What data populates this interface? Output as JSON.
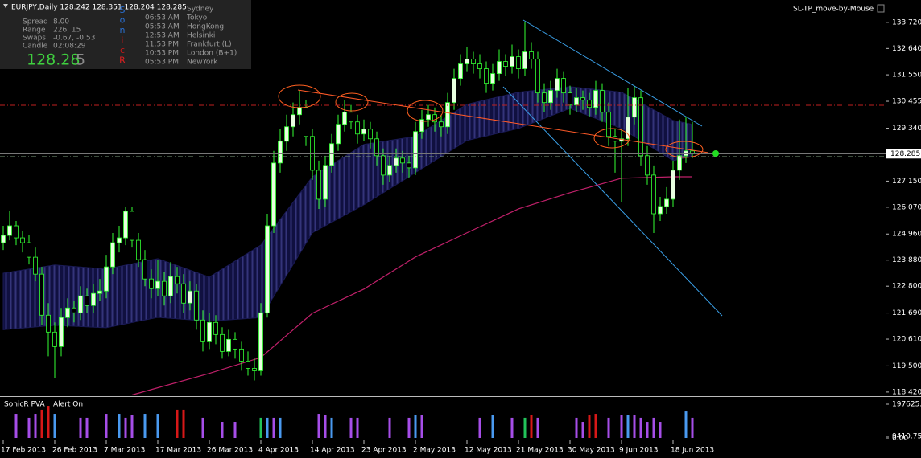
{
  "header": {
    "symbol": "EURJPY,Daily  128.242 128.351 128.204 128.285",
    "expert": "SL-TP_move-by-Mouse"
  },
  "info_panel": {
    "rows": [
      [
        "Spread",
        "8.00"
      ],
      [
        "Range",
        "226, 15"
      ],
      [
        "Swaps",
        "-0.67, -0.53"
      ],
      [
        "Candle",
        "02:08:29"
      ]
    ],
    "price_main": "128.28",
    "price_last": "5",
    "sonic": [
      {
        "letter": "S",
        "color": "#2a6fd0"
      },
      {
        "letter": "o",
        "color": "#2a6fd0"
      },
      {
        "letter": "n",
        "color": "#2a6fd0"
      },
      {
        "letter": "i",
        "color": "#a01818"
      },
      {
        "letter": "c",
        "color": "#c81818"
      },
      {
        "letter": "R",
        "color": "#e02020"
      }
    ],
    "sessions": [
      {
        "city": "Sydney"
      },
      {
        "time": "06:53 AM",
        "city": "Tokyo"
      },
      {
        "time": "05:53 AM",
        "city": "HongKong"
      },
      {
        "time": "12:53 AM",
        "city": "Helsinki"
      },
      {
        "time": "11:53 PM",
        "city": "Frankfurt  (L)"
      },
      {
        "time": "10:53 PM",
        "city": "London  (B+1)"
      },
      {
        "time": "05:53 PM",
        "city": "NewYork"
      }
    ]
  },
  "chart_data": [
    {
      "type": "candlestick",
      "categories": [
        "17 Feb 2013",
        null,
        null,
        null,
        null,
        null,
        null,
        null,
        "26 Feb 2013",
        null,
        null,
        null,
        null,
        null,
        null,
        null,
        "7 Mar 2013",
        null,
        null,
        null,
        null,
        null,
        null,
        null,
        "17 Mar 2013",
        null,
        null,
        null,
        null,
        null,
        null,
        null,
        "26 Mar 2013",
        null,
        null,
        null,
        null,
        null,
        null,
        null,
        "4 Apr 2013",
        null,
        null,
        null,
        null,
        null,
        null,
        null,
        "14 Apr 2013",
        null,
        null,
        null,
        null,
        null,
        null,
        null,
        "23 Apr 2013",
        null,
        null,
        null,
        null,
        null,
        null,
        null,
        "2 May 2013",
        null,
        null,
        null,
        null,
        null,
        null,
        null,
        "12 May 2013",
        null,
        null,
        null,
        null,
        null,
        null,
        null,
        "21 May 2013",
        null,
        null,
        null,
        null,
        null,
        null,
        null,
        "30 May 2013",
        null,
        null,
        null,
        null,
        null,
        null,
        null,
        "9 Jun 2013",
        null,
        null,
        null,
        null,
        null,
        null,
        null,
        "18 Jun 2013",
        null,
        null,
        null
      ],
      "ohlc": [
        [
          124.6,
          125.3,
          124.3,
          124.9
        ],
        [
          124.9,
          125.9,
          124.7,
          125.3
        ],
        [
          125.3,
          125.5,
          124.5,
          124.8
        ],
        [
          124.8,
          125.1,
          124.2,
          124.6
        ],
        [
          124.6,
          124.9,
          123.7,
          124.0
        ],
        [
          124.0,
          124.4,
          123.0,
          123.3
        ],
        [
          123.3,
          123.6,
          121.2,
          121.6
        ],
        [
          121.6,
          122.1,
          119.9,
          120.9
        ],
        [
          120.9,
          121.3,
          119.0,
          120.3
        ],
        [
          120.3,
          121.9,
          119.9,
          121.5
        ],
        [
          121.5,
          122.3,
          121.1,
          121.9
        ],
        [
          121.9,
          122.2,
          121.3,
          121.7
        ],
        [
          121.7,
          122.8,
          121.4,
          122.4
        ],
        [
          122.4,
          122.7,
          121.7,
          122.0
        ],
        [
          122.0,
          122.9,
          121.7,
          122.5
        ],
        [
          122.5,
          123.1,
          122.2,
          122.6
        ],
        [
          122.6,
          124.1,
          122.3,
          123.6
        ],
        [
          123.6,
          125.0,
          123.3,
          124.6
        ],
        [
          124.6,
          125.3,
          124.2,
          124.8
        ],
        [
          124.8,
          126.1,
          124.5,
          125.9
        ],
        [
          125.9,
          126.1,
          124.4,
          124.7
        ],
        [
          124.7,
          125.0,
          123.6,
          123.9
        ],
        [
          123.9,
          124.3,
          122.8,
          123.1
        ],
        [
          123.1,
          123.5,
          122.3,
          122.7
        ],
        [
          122.7,
          123.9,
          122.4,
          123.0
        ],
        [
          123.0,
          123.4,
          122.0,
          122.4
        ],
        [
          122.4,
          123.8,
          122.1,
          123.2
        ],
        [
          123.2,
          123.6,
          122.5,
          122.9
        ],
        [
          122.9,
          123.3,
          121.7,
          122.1
        ],
        [
          122.1,
          123.0,
          121.8,
          122.6
        ],
        [
          122.6,
          122.9,
          121.0,
          121.4
        ],
        [
          121.4,
          121.8,
          120.1,
          120.5
        ],
        [
          120.5,
          121.7,
          120.2,
          121.3
        ],
        [
          121.3,
          121.6,
          120.4,
          120.8
        ],
        [
          120.8,
          121.1,
          119.8,
          120.1
        ],
        [
          120.1,
          121.0,
          119.9,
          120.6
        ],
        [
          120.6,
          120.9,
          119.8,
          120.2
        ],
        [
          120.2,
          120.5,
          119.3,
          119.7
        ],
        [
          119.7,
          120.1,
          119.1,
          119.4
        ],
        [
          119.4,
          119.8,
          118.9,
          119.3
        ],
        [
          119.3,
          122.1,
          119.1,
          121.7
        ],
        [
          121.7,
          125.8,
          121.5,
          125.3
        ],
        [
          125.3,
          128.4,
          125.0,
          127.9
        ],
        [
          127.9,
          129.3,
          127.5,
          128.8
        ],
        [
          128.8,
          129.9,
          128.4,
          129.4
        ],
        [
          129.4,
          130.4,
          129.0,
          129.9
        ],
        [
          129.9,
          130.9,
          129.5,
          130.2
        ],
        [
          130.2,
          130.5,
          128.6,
          129.0
        ],
        [
          129.0,
          129.3,
          127.2,
          127.6
        ],
        [
          127.6,
          128.0,
          126.0,
          126.4
        ],
        [
          126.4,
          128.2,
          126.1,
          127.8
        ],
        [
          127.8,
          129.1,
          127.5,
          128.7
        ],
        [
          128.7,
          129.9,
          128.4,
          129.5
        ],
        [
          129.5,
          130.5,
          129.2,
          130.0
        ],
        [
          130.0,
          130.3,
          129.3,
          129.6
        ],
        [
          129.6,
          129.9,
          128.7,
          129.1
        ],
        [
          129.1,
          129.7,
          128.8,
          129.3
        ],
        [
          129.3,
          129.6,
          128.5,
          128.9
        ],
        [
          128.9,
          129.2,
          127.8,
          128.2
        ],
        [
          128.2,
          128.5,
          127.0,
          127.4
        ],
        [
          127.4,
          128.2,
          127.1,
          127.8
        ],
        [
          127.8,
          128.5,
          127.5,
          128.1
        ],
        [
          128.1,
          128.4,
          127.5,
          127.9
        ],
        [
          127.9,
          128.2,
          127.3,
          127.7
        ],
        [
          127.7,
          129.6,
          127.4,
          129.2
        ],
        [
          129.2,
          130.1,
          128.9,
          129.7
        ],
        [
          129.7,
          130.3,
          129.4,
          129.9
        ],
        [
          129.9,
          130.2,
          129.2,
          129.6
        ],
        [
          129.6,
          129.9,
          129.0,
          129.4
        ],
        [
          129.4,
          130.8,
          129.1,
          130.4
        ],
        [
          130.4,
          131.8,
          130.1,
          131.4
        ],
        [
          131.4,
          132.4,
          131.1,
          132.0
        ],
        [
          132.0,
          132.7,
          131.7,
          132.2
        ],
        [
          132.2,
          132.5,
          131.6,
          132.0
        ],
        [
          132.0,
          132.4,
          131.4,
          131.8
        ],
        [
          131.8,
          132.1,
          130.8,
          131.2
        ],
        [
          131.2,
          132.0,
          130.9,
          131.6
        ],
        [
          131.6,
          132.6,
          131.3,
          132.1
        ],
        [
          132.1,
          132.4,
          131.5,
          131.9
        ],
        [
          131.9,
          132.8,
          131.6,
          132.3
        ],
        [
          132.3,
          132.6,
          131.4,
          131.8
        ],
        [
          131.8,
          133.75,
          131.5,
          132.5
        ],
        [
          132.5,
          132.9,
          131.8,
          132.2
        ],
        [
          132.2,
          132.5,
          130.4,
          130.8
        ],
        [
          130.8,
          131.2,
          130.0,
          130.4
        ],
        [
          130.4,
          131.3,
          130.1,
          130.9
        ],
        [
          130.9,
          131.8,
          130.6,
          131.4
        ],
        [
          131.4,
          131.7,
          130.4,
          130.8
        ],
        [
          130.8,
          131.1,
          129.9,
          130.3
        ],
        [
          130.3,
          131.0,
          130.0,
          130.6
        ],
        [
          130.6,
          130.9,
          130.1,
          130.5
        ],
        [
          130.5,
          130.8,
          129.8,
          130.2
        ],
        [
          130.2,
          131.3,
          129.9,
          130.9
        ],
        [
          130.9,
          131.2,
          129.6,
          130.0
        ],
        [
          130.0,
          130.4,
          128.6,
          129.0
        ],
        [
          129.0,
          129.3,
          127.5,
          128.8
        ],
        [
          128.8,
          129.3,
          126.3,
          128.9
        ],
        [
          128.9,
          131.0,
          128.6,
          129.8
        ],
        [
          129.8,
          131.1,
          129.5,
          130.6
        ],
        [
          130.6,
          130.9,
          127.8,
          128.2
        ],
        [
          128.2,
          128.6,
          127.0,
          127.4
        ],
        [
          127.4,
          127.8,
          125.0,
          125.8
        ],
        [
          125.8,
          126.5,
          125.5,
          126.1
        ],
        [
          126.1,
          126.9,
          125.8,
          126.4
        ],
        [
          126.4,
          128.0,
          126.1,
          127.6
        ],
        [
          127.6,
          129.7,
          127.2,
          128.2
        ],
        [
          128.2,
          129.8,
          127.9,
          128.4
        ],
        [
          128.4,
          129.6,
          128.1,
          128.285
        ]
      ],
      "up_color": "#e8ffe0",
      "down_color": "#000000",
      "wick_color": "#33ff33",
      "ylim": [
        118.25,
        134.48
      ],
      "yticks": [
        {
          "value": 133.72,
          "label": "133.720"
        },
        {
          "value": 132.64,
          "label": "132.640"
        },
        {
          "value": 131.55,
          "label": "131.550"
        },
        130.455,
        {
          "value": 129.34,
          "label": "129.340"
        },
        {
          "value": 127.15,
          "label": "127.150"
        },
        {
          "value": 126.07,
          "label": "126.070"
        },
        {
          "value": 124.96,
          "label": "124.960"
        },
        {
          "value": 123.88,
          "label": "123.880"
        },
        {
          "value": 122.8,
          "label": "122.800"
        },
        {
          "value": 121.69,
          "label": "121.690"
        },
        {
          "value": 120.61,
          "label": "120.610"
        },
        {
          "value": 119.5,
          "label": "119.500"
        },
        {
          "value": 118.42,
          "label": "118.420"
        }
      ],
      "last_price": 128.285,
      "band": {
        "x": [
          0,
          8,
          16,
          24,
          32,
          40,
          48,
          56,
          64,
          72,
          80,
          88,
          96,
          104,
          107
        ],
        "upper": [
          123.34,
          123.68,
          123.51,
          123.94,
          123.18,
          124.5,
          127.33,
          128.67,
          129.0,
          130.33,
          130.83,
          131.06,
          130.83,
          129.66,
          129.5
        ],
        "lower": [
          121.0,
          121.18,
          121.08,
          121.51,
          121.35,
          121.5,
          125.01,
          126.17,
          127.5,
          128.83,
          129.33,
          130.16,
          129.33,
          128.0,
          128.17
        ],
        "color": "#1a1a55"
      },
      "ma": {
        "x": [
          20,
          32,
          40,
          48,
          56,
          64,
          72,
          80,
          88,
          96,
          104,
          107
        ],
        "values": [
          118.3,
          119.19,
          119.85,
          121.68,
          122.68,
          124.01,
          125.01,
          126.0,
          126.67,
          127.27,
          127.33,
          127.33
        ],
        "color": "#c0206a"
      }
    },
    {
      "type": "bar",
      "title": "SonicR PVA",
      "subtitle": "Alert On",
      "values": [
        null,
        null,
        141000,
        null,
        118000,
        141000,
        165000,
        188000,
        141000,
        null,
        null,
        null,
        118000,
        118000,
        null,
        null,
        141000,
        null,
        141000,
        118000,
        132000,
        null,
        141000,
        null,
        141000,
        null,
        null,
        165000,
        165000,
        null,
        null,
        118000,
        null,
        null,
        94000,
        null,
        94000,
        null,
        null,
        null,
        118000,
        118000,
        118000,
        118000,
        null,
        null,
        null,
        null,
        null,
        141000,
        132000,
        118000,
        null,
        null,
        118000,
        118000,
        null,
        null,
        null,
        null,
        118000,
        null,
        null,
        118000,
        132000,
        132000,
        null,
        null,
        null,
        null,
        null,
        null,
        null,
        null,
        118000,
        null,
        132000,
        null,
        null,
        118000,
        null,
        118000,
        132000,
        118000,
        null,
        null,
        null,
        null,
        null,
        118000,
        94000,
        132000,
        141000,
        null,
        118000,
        null,
        132000,
        132000,
        132000,
        118000,
        94000,
        118000,
        94000,
        null,
        null,
        null,
        155000,
        118000
      ],
      "colors": [
        null,
        null,
        "#a64ee8",
        null,
        "#a64ee8",
        "#a64ee8",
        "#d81818",
        "#d81818",
        "#4a9af0",
        null,
        null,
        null,
        "#a64ee8",
        "#a64ee8",
        null,
        null,
        "#a64ee8",
        null,
        "#4a9af0",
        "#a64ee8",
        "#a64ee8",
        null,
        "#4a9af0",
        null,
        "#4a9af0",
        null,
        null,
        "#d81818",
        "#d81818",
        null,
        null,
        "#a64ee8",
        null,
        null,
        "#a64ee8",
        null,
        "#a64ee8",
        null,
        null,
        null,
        "#22c35a",
        "#4a9af0",
        "#a64ee8",
        "#4a9af0",
        null,
        null,
        null,
        null,
        null,
        "#a64ee8",
        "#a64ee8",
        "#4a9af0",
        null,
        null,
        "#a64ee8",
        "#a64ee8",
        null,
        null,
        null,
        null,
        "#a64ee8",
        null,
        null,
        "#a64ee8",
        "#4a9af0",
        "#a64ee8",
        null,
        null,
        null,
        null,
        null,
        null,
        null,
        null,
        "#a64ee8",
        null,
        "#4a9af0",
        null,
        null,
        "#a64ee8",
        null,
        "#22c35a",
        "#d81818",
        "#a64ee8",
        null,
        null,
        null,
        null,
        null,
        "#a64ee8",
        "#a64ee8",
        "#d81818",
        "#d81818",
        null,
        "#a64ee8",
        null,
        "#a64ee8",
        "#4a9af0",
        "#a64ee8",
        "#a64ee8",
        "#a64ee8",
        "#a64ee8",
        "#a64ee8",
        null,
        null,
        null,
        "#4a9af0",
        "#a64ee8"
      ],
      "ylim": [
        0,
        197625.7
      ],
      "yticks": [
        197625.7,
        9410.75,
        {
          "value": 0,
          "label": "0.00"
        }
      ]
    }
  ]
}
